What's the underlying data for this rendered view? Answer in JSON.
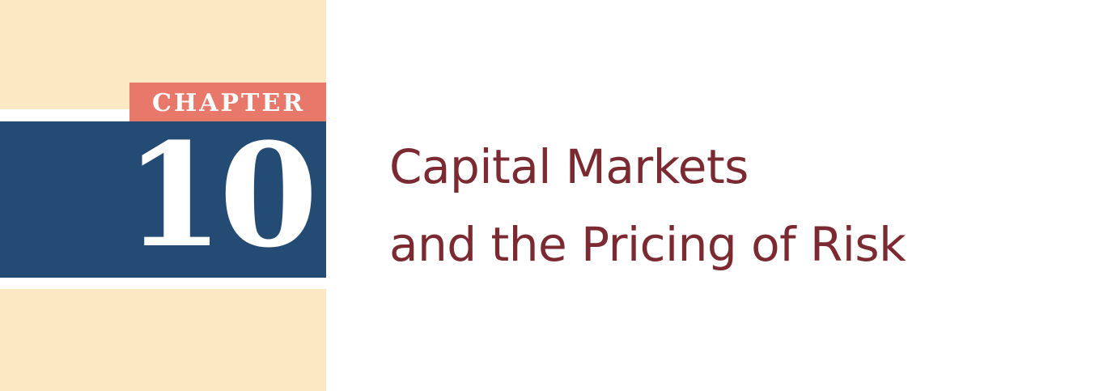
{
  "chapter": {
    "label": "CHAPTER",
    "number": "10"
  },
  "title": {
    "line1": "Capital Markets",
    "line2": "and the Pricing of Risk"
  },
  "colors": {
    "panel_background": "#FDE8C4",
    "chapter_tab": "#E8786A",
    "number_block": "#234B74",
    "title_text": "#7A2A30"
  }
}
